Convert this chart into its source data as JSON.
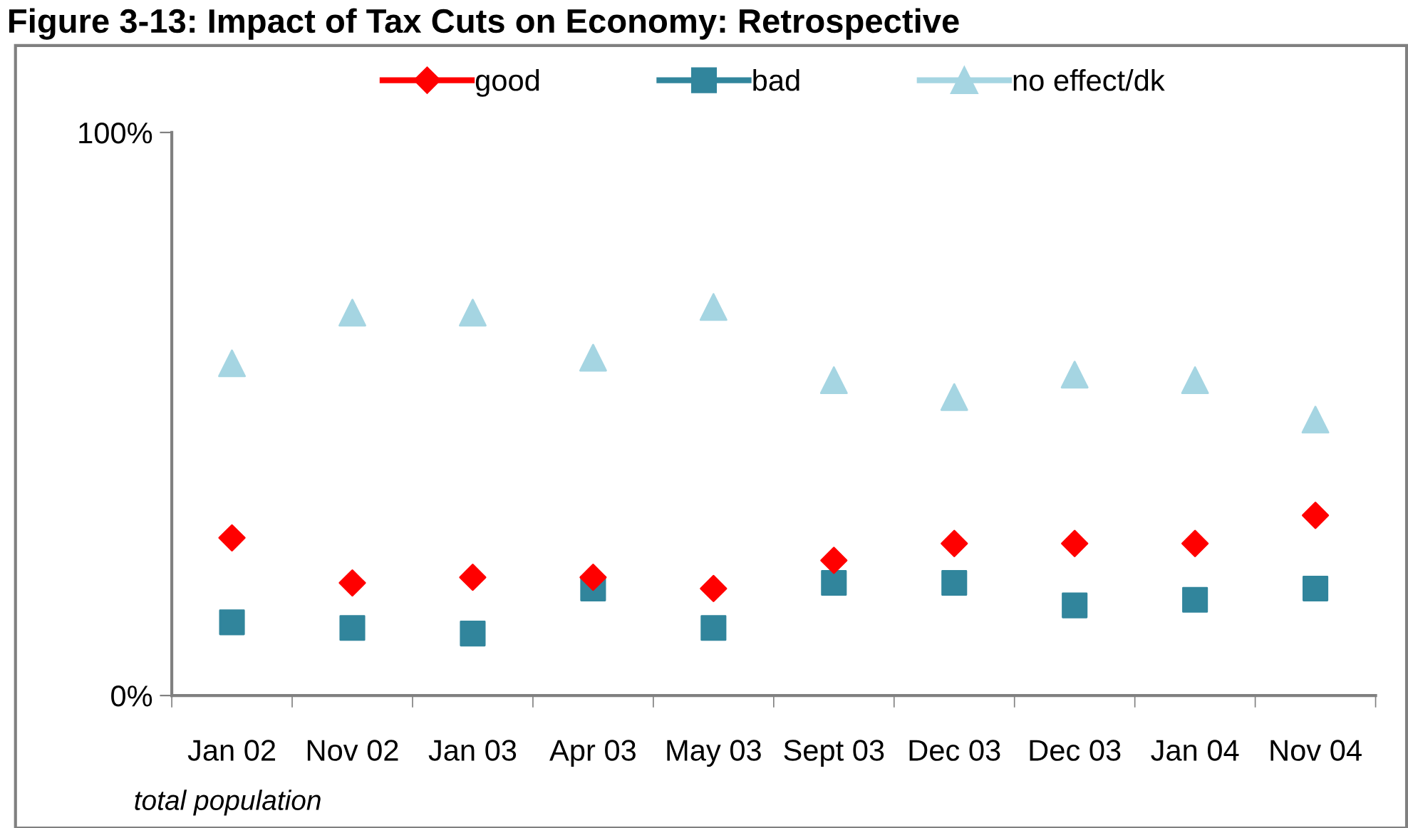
{
  "chart_data": {
    "type": "scatter",
    "title": "Figure 3-13: Impact of Tax Cuts on Economy: Retrospective",
    "categories": [
      "Jan 02",
      "Nov 02",
      "Jan 03",
      "Apr 03",
      "May 03",
      "Sept 03",
      "Dec 03",
      "Dec 03",
      "Jan 04",
      "Nov 04"
    ],
    "series": [
      {
        "name": "good",
        "color": "#ff0000",
        "marker": "diamond",
        "values": [
          28,
          20,
          21,
          21,
          19,
          24,
          27,
          27,
          27,
          32
        ]
      },
      {
        "name": "bad",
        "color": "#31859c",
        "marker": "square",
        "values": [
          13,
          12,
          11,
          19,
          12,
          20,
          20,
          16,
          17,
          19
        ]
      },
      {
        "name": "no effect/dk",
        "color": "#a5d5e2",
        "marker": "triangle",
        "values": [
          59,
          68,
          68,
          60,
          69,
          56,
          53,
          57,
          56,
          49
        ]
      }
    ],
    "ylim": [
      0,
      100
    ],
    "yticks": [
      {
        "value": 0,
        "label": "0%"
      },
      {
        "value": 100,
        "label": "100%"
      }
    ],
    "grid": false,
    "legend": "top",
    "annotations": [
      "total population"
    ]
  }
}
